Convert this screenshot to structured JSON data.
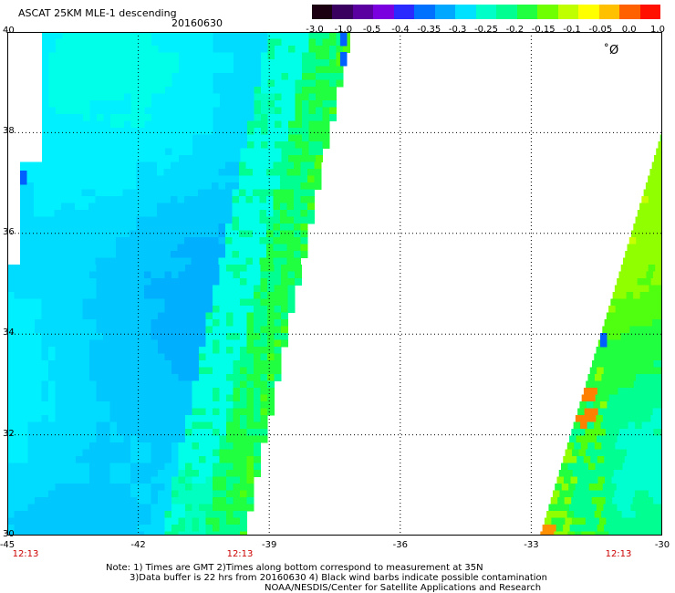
{
  "title": "ASCAT 25KM MLE-1 descending",
  "date": "20160630",
  "colorbar": {
    "ticks": [
      "-3.0",
      "-1.0",
      "-0.5",
      "-0.4",
      "-0.35",
      "-0.3",
      "-0.25",
      "-0.2",
      "-0.15",
      "-0.1",
      "-0.05",
      "0.0",
      "1.0"
    ],
    "colors": [
      "#1a0010",
      "#3a0060",
      "#5a00a0",
      "#7a00e0",
      "#2a2aff",
      "#0070ff",
      "#00a8ff",
      "#00e0ff",
      "#00ffc8",
      "#00ff90",
      "#20ff40",
      "#70ff00",
      "#c0ff00",
      "#ffff00",
      "#ffc000",
      "#ff6000",
      "#ff1000"
    ]
  },
  "axes": {
    "lat_labels": [
      "40",
      "38",
      "36",
      "34",
      "32",
      "30"
    ],
    "lon_labels": [
      "-45",
      "-42",
      "-39",
      "-36",
      "-33",
      "-30"
    ],
    "time_labels": [
      "12:13",
      "12:13",
      "12:13"
    ]
  },
  "notes": {
    "line1": "Note: 1) Times are GMT 2)Times along bottom correspond to measurement at 35N",
    "line2": "3)Data buffer is 22 hrs from 20160630 4) Black wind barbs indicate possible contamination",
    "line3": "NOAA/NESDIS/Center for Satellite Applications and Research"
  }
}
